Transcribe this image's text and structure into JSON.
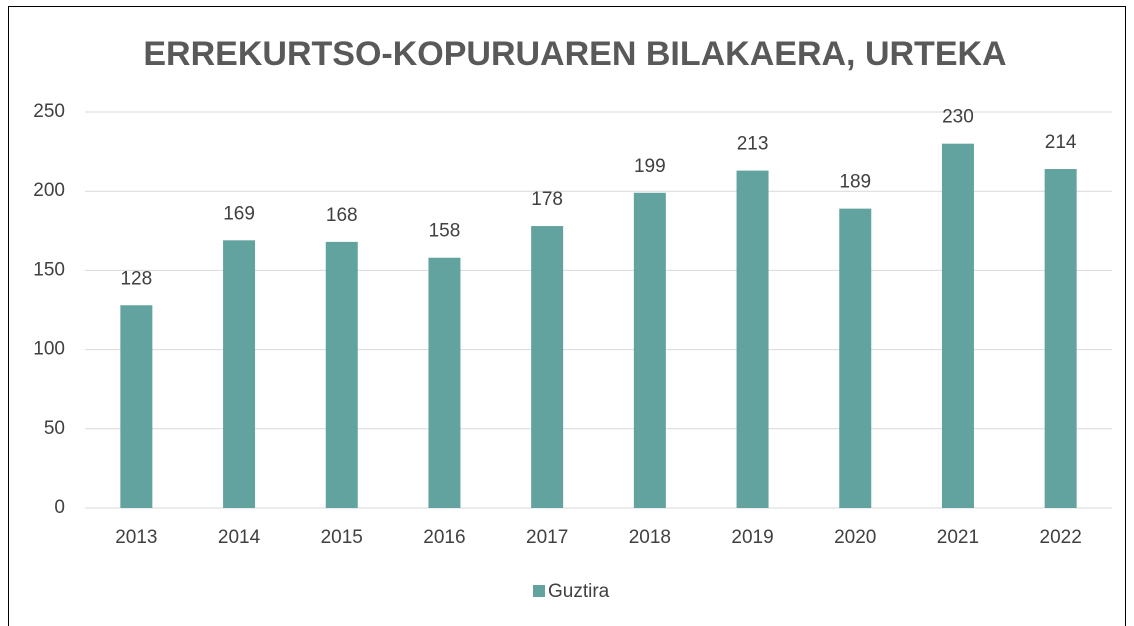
{
  "chart_data": {
    "type": "bar",
    "title": "ERREKURTSO-KOPURUAREN BILAKAERA, URTEKA",
    "categories": [
      "2013",
      "2014",
      "2015",
      "2016",
      "2017",
      "2018",
      "2019",
      "2020",
      "2021",
      "2022"
    ],
    "series": [
      {
        "name": "Guztira",
        "color": "#62a39f",
        "values": [
          128,
          169,
          168,
          158,
          178,
          199,
          213,
          189,
          230,
          214
        ]
      }
    ],
    "ylim": [
      0,
      250
    ],
    "yticks": [
      0,
      50,
      100,
      150,
      200,
      250
    ],
    "grid": true,
    "legend": "bottom",
    "data_labels": true
  }
}
